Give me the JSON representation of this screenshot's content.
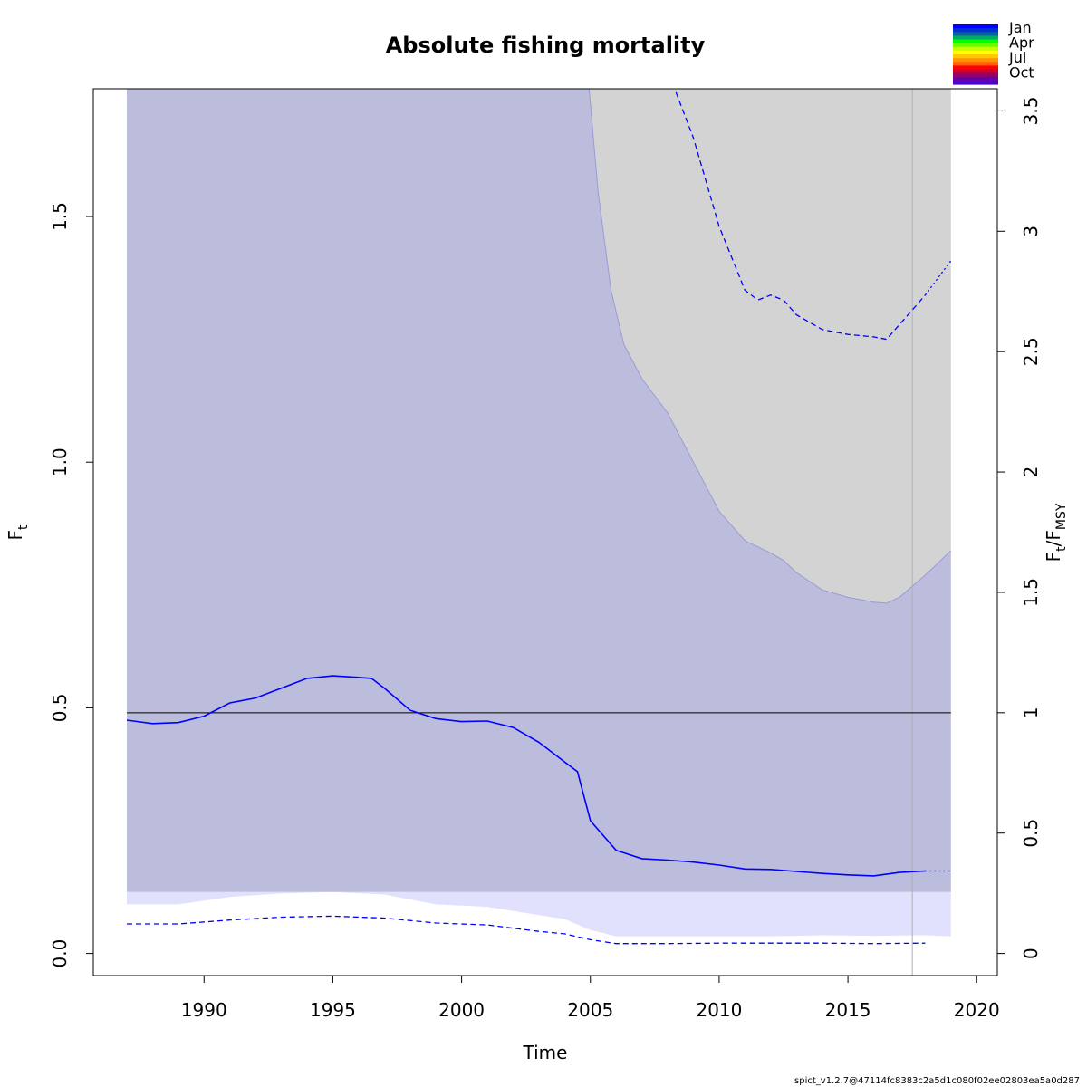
{
  "chart_data": {
    "type": "line",
    "title": "Absolute fishing mortality",
    "xlabel": "Time",
    "ylabel": "F",
    "ylabel_sub": "t",
    "y2label": "F",
    "y2label_sub1": "t",
    "y2label_sep": "/F",
    "y2label_sub2": "MSY",
    "xlim": [
      1985.7,
      2020.8
    ],
    "ylim": [
      -0.045,
      1.76
    ],
    "xticks": [
      1990,
      1995,
      2000,
      2005,
      2010,
      2015,
      2020
    ],
    "yticks": [
      0.0,
      0.5,
      1.0,
      1.5
    ],
    "ytick_labels": [
      "0.0",
      "0.5",
      "1.0",
      "1.5"
    ],
    "y2ticks": [
      0,
      0.5,
      1,
      1.5,
      2,
      2.5,
      3,
      3.5
    ],
    "y2tick_labels": [
      "0",
      "0.5",
      "1",
      "1.5",
      "2",
      "2.5",
      "3",
      "3.5"
    ],
    "fmsy": 0.49,
    "fmsy_ci": [
      0.125,
      1.76
    ],
    "fmsy_ci_range": [
      1987,
      2019
    ],
    "last_obs_line": 2017.5,
    "series": [
      {
        "name": "F estimate",
        "x": [
          1987,
          1988,
          1989,
          1990,
          1991,
          1992,
          1993,
          1994,
          1995,
          1996,
          1996.5,
          1997,
          1998,
          1999,
          2000,
          2001,
          2002,
          2003,
          2004,
          2004.5,
          2005,
          2006,
          2007,
          2008,
          2009,
          2010,
          2011,
          2012,
          2013,
          2014,
          2015,
          2016,
          2017,
          2018
        ],
        "values": [
          0.475,
          0.468,
          0.47,
          0.483,
          0.51,
          0.52,
          0.54,
          0.56,
          0.565,
          0.562,
          0.56,
          0.54,
          0.495,
          0.478,
          0.472,
          0.473,
          0.46,
          0.43,
          0.39,
          0.37,
          0.27,
          0.21,
          0.193,
          0.19,
          0.186,
          0.18,
          0.172,
          0.171,
          0.167,
          0.163,
          0.16,
          0.158,
          0.165,
          0.168
        ]
      },
      {
        "name": "F prediction",
        "x": [
          2018,
          2019
        ],
        "values": [
          0.168,
          0.168
        ]
      },
      {
        "name": "F lower CI",
        "x": [
          1987,
          1989,
          1991,
          1993,
          1995,
          1997,
          1999,
          2001,
          2003,
          2004,
          2005,
          2006,
          2008,
          2010,
          2012,
          2014,
          2016,
          2018
        ],
        "values": [
          0.06,
          0.06,
          0.068,
          0.074,
          0.076,
          0.072,
          0.062,
          0.058,
          0.045,
          0.04,
          0.028,
          0.02,
          0.02,
          0.021,
          0.021,
          0.021,
          0.02,
          0.021
        ]
      },
      {
        "name": "F upper CI",
        "x": [
          2008.2,
          2009,
          2010,
          2011,
          2011.5,
          2012,
          2012.5,
          2013,
          2014,
          2015,
          2016,
          2016.5,
          2017,
          2017.5,
          2018
        ],
        "values": [
          1.77,
          1.66,
          1.48,
          1.35,
          1.33,
          1.34,
          1.33,
          1.3,
          1.27,
          1.26,
          1.255,
          1.25,
          1.28,
          1.31,
          1.34
        ]
      },
      {
        "name": "F upper CI prediction",
        "x": [
          2018,
          2019
        ],
        "values": [
          1.34,
          1.41
        ]
      }
    ],
    "ci_band": {
      "x": [
        1987,
        1989,
        1991,
        1993,
        1995,
        1997,
        1999,
        2001,
        2003,
        2004,
        2005,
        2006,
        2008,
        2010,
        2012,
        2014,
        2016,
        2018,
        2019
      ],
      "lower": [
        0.1,
        0.1,
        0.115,
        0.122,
        0.125,
        0.12,
        0.1,
        0.095,
        0.078,
        0.07,
        0.048,
        0.035,
        0.035,
        0.035,
        0.035,
        0.037,
        0.036,
        0.037,
        0.035
      ],
      "upper": [
        1.76,
        1.76,
        1.76,
        1.76,
        1.76,
        1.76,
        1.76,
        1.76,
        1.76,
        1.76,
        1.76,
        1.76,
        1.76,
        1.76,
        1.76,
        1.76,
        1.76,
        1.76,
        1.76
      ]
    },
    "grey_region": {
      "x": [
        2004.95,
        2005.3,
        2005.8,
        2006.3,
        2007,
        2008,
        2009,
        2010,
        2011,
        2012,
        2012.5,
        2013,
        2014,
        2015,
        2016,
        2016.5,
        2017,
        2018,
        2019
      ],
      "lower": [
        1.76,
        1.55,
        1.35,
        1.24,
        1.17,
        1.1,
        1.0,
        0.9,
        0.84,
        0.815,
        0.8,
        0.775,
        0.74,
        0.725,
        0.715,
        0.713,
        0.725,
        0.77,
        0.82
      ]
    },
    "legend": {
      "placement": "top-right",
      "labels": [
        "Jan",
        "Apr",
        "Jul",
        "Oct"
      ],
      "colors": [
        "#0000ff",
        "#0032c8",
        "#006496",
        "#00aa64",
        "#00ff00",
        "#64ff00",
        "#c8ff00",
        "#ffff00",
        "#ffc800",
        "#ff9600",
        "#ff6400",
        "#ff0000",
        "#c80032",
        "#960064",
        "#6400aa",
        "#5000c8"
      ]
    },
    "colors": {
      "ci_fill": "#bcbddc",
      "ci_lower_fill": "#e1e1fe",
      "grey_fill": "#d3d3d3",
      "line": "#0000ff",
      "ref_line": "#000000",
      "grey_line": "#b0b0b0"
    }
  },
  "footer": "spict_v1.2.7@47114fc8383c2a5d1c080f02ee02803ea5a0d287"
}
